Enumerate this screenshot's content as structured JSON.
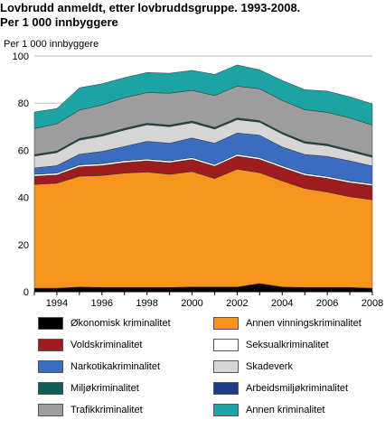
{
  "title_line1": "Lovbrudd anmeldt, etter lovbruddsgruppe. 1993-2008.",
  "title_line2": "Per 1 000 innbyggere",
  "chart_data": {
    "type": "area",
    "stacked": true,
    "ylabel": "Per 1 000 innbyggere",
    "ylim": [
      0,
      100
    ],
    "yticks": [
      0,
      20,
      40,
      60,
      80,
      100
    ],
    "x": [
      1993,
      1994,
      1995,
      1996,
      1997,
      1998,
      1999,
      2000,
      2001,
      2002,
      2003,
      2004,
      2005,
      2006,
      2007,
      2008
    ],
    "xtick_labels": [
      "1994",
      "1996",
      "1998",
      "2000",
      "2002",
      "2004",
      "2006",
      "2008"
    ],
    "grid": true,
    "series": [
      {
        "name": "Økonomisk kriminalitet",
        "color": "#000000",
        "values": [
          1.5,
          1.5,
          2.0,
          1.8,
          1.8,
          1.8,
          1.8,
          2.0,
          2.0,
          2.0,
          3.5,
          2.0,
          1.8,
          1.8,
          1.8,
          1.5
        ]
      },
      {
        "name": "Annen vinningskriminalitet",
        "color": "#f7941d",
        "values": [
          44.0,
          44.5,
          47.0,
          47.5,
          48.5,
          49.0,
          48.0,
          49.0,
          46.0,
          50.0,
          47.0,
          45.0,
          42.0,
          40.5,
          38.5,
          37.5
        ]
      },
      {
        "name": "Voldskriminalitet",
        "color": "#9e1b20",
        "values": [
          3.5,
          3.5,
          4.0,
          4.2,
          4.5,
          4.7,
          4.9,
          5.1,
          5.2,
          5.5,
          5.6,
          5.6,
          5.6,
          5.8,
          5.9,
          6.0
        ]
      },
      {
        "name": "Seksualkriminalitet",
        "color": "#ffffff",
        "values": [
          0.8,
          0.8,
          0.8,
          0.8,
          0.8,
          0.8,
          0.8,
          0.8,
          0.8,
          0.8,
          0.8,
          0.8,
          0.8,
          0.8,
          0.8,
          0.8
        ]
      },
      {
        "name": "Narkotikakriminalitet",
        "color": "#3a6dbf",
        "values": [
          2.7,
          3.2,
          4.5,
          5.2,
          6.0,
          7.5,
          7.5,
          8.3,
          9.0,
          9.0,
          9.5,
          8.0,
          8.0,
          8.5,
          8.5,
          7.5
        ]
      },
      {
        "name": "Skadeverk",
        "color": "#d6d6d6",
        "values": [
          5.0,
          5.5,
          6.0,
          6.5,
          7.0,
          7.0,
          7.0,
          6.5,
          6.0,
          5.7,
          5.5,
          5.5,
          4.8,
          4.5,
          4.0,
          3.7
        ]
      },
      {
        "name": "Miljøkriminalitet",
        "color": "#0d5e55",
        "values": [
          0.5,
          0.5,
          0.5,
          0.5,
          0.5,
          0.5,
          0.5,
          0.5,
          0.5,
          0.5,
          0.5,
          0.5,
          0.5,
          0.5,
          0.5,
          0.5
        ]
      },
      {
        "name": "Arbeidsmiljøkriminalitet",
        "color": "#1f3c88",
        "values": [
          0.2,
          0.2,
          0.2,
          0.2,
          0.2,
          0.2,
          0.2,
          0.2,
          0.2,
          0.2,
          0.2,
          0.2,
          0.2,
          0.2,
          0.2,
          0.2
        ]
      },
      {
        "name": "Trafikkriminalitet",
        "color": "#9d9d9d",
        "values": [
          11.0,
          11.5,
          12.0,
          12.5,
          13.0,
          13.0,
          13.5,
          13.0,
          13.5,
          13.5,
          13.5,
          13.5,
          13.5,
          13.5,
          13.5,
          13.0
        ]
      },
      {
        "name": "Annen kriminalitet",
        "color": "#1ca4a4",
        "values": [
          7.0,
          6.5,
          9.5,
          9.0,
          8.5,
          8.5,
          8.5,
          8.5,
          9.0,
          9.0,
          8.0,
          8.5,
          8.5,
          9.0,
          9.0,
          9.0
        ]
      }
    ]
  },
  "legend": [
    {
      "name": "Økonomisk kriminalitet",
      "color": "#000000"
    },
    {
      "name": "Annen vinningskriminalitet",
      "color": "#f7941d"
    },
    {
      "name": "Voldskriminalitet",
      "color": "#9e1b20"
    },
    {
      "name": "Seksualkriminalitet",
      "color": "#ffffff"
    },
    {
      "name": "Narkotikakriminalitet",
      "color": "#3a6dbf"
    },
    {
      "name": "Skadeverk",
      "color": "#d6d6d6"
    },
    {
      "name": "Miljøkriminalitet",
      "color": "#0d5e55"
    },
    {
      "name": "Arbeidsmiljøkriminalitet",
      "color": "#1f3c88"
    },
    {
      "name": "Trafikkriminalitet",
      "color": "#9d9d9d"
    },
    {
      "name": "Annen kriminalitet",
      "color": "#1ca4a4"
    }
  ]
}
